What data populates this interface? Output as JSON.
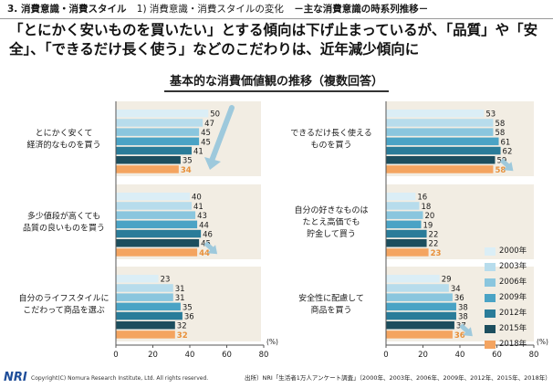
{
  "header": {
    "section": "3. 消費意識・消費スタイル",
    "subsection": "1) 消費意識・消費スタイルの変化",
    "topic": "－主な消費意識の時系列推移－"
  },
  "headline": "「とにかく安いものを買いたい」とする傾向は下げ止まっているが、「品質」や「安全」、「できるだけ長く使う」などのこだわりは、近年減少傾向に",
  "chart_data": {
    "type": "bar",
    "orientation": "horizontal",
    "title": "基本的な消費価値観の推移（複数回答）",
    "unit_label": "(%)",
    "xlim": [
      0,
      80
    ],
    "xticks": [
      0,
      20,
      40,
      60,
      80
    ],
    "series": [
      {
        "name": "2000年",
        "color": "#dbeef6"
      },
      {
        "name": "2003年",
        "color": "#b7dcec"
      },
      {
        "name": "2006年",
        "color": "#8ac6de"
      },
      {
        "name": "2009年",
        "color": "#4aa3c5"
      },
      {
        "name": "2012年",
        "color": "#2a7c99"
      },
      {
        "name": "2015年",
        "color": "#1c4e5e"
      },
      {
        "name": "2018年",
        "color": "#f4a460"
      }
    ],
    "panels": [
      {
        "label": "とにかく安くて\n経済的なものを買う",
        "values": [
          50,
          47,
          45,
          45,
          41,
          35,
          34
        ]
      },
      {
        "label": "多少値段が高くても\n品質の良いものを買う",
        "values": [
          40,
          41,
          43,
          44,
          46,
          45,
          44
        ]
      },
      {
        "label": "自分のライフスタイルに\nこだわって商品を選ぶ",
        "values": [
          23,
          31,
          31,
          35,
          36,
          32,
          32
        ]
      },
      {
        "label": "できるだけ長く使える\nものを買う",
        "values": [
          53,
          58,
          58,
          61,
          62,
          59,
          58
        ]
      },
      {
        "label": "自分の好きなものは\nたとえ高価でも\n貯金して買う",
        "values": [
          16,
          18,
          20,
          19,
          22,
          22,
          23
        ]
      },
      {
        "label": "安全性に配慮して\n商品を買う",
        "values": [
          29,
          34,
          36,
          38,
          38,
          37,
          36
        ]
      }
    ]
  },
  "footer": {
    "logo": "NRI",
    "copyright": "Copyright(C) Nomura Research Institute, Ltd. All rights reserved.",
    "source": "出所）NRI「生活者1万人アンケート調査」（2000年、2003年、2006年、2009年、2012年、2015年、2018年）"
  }
}
